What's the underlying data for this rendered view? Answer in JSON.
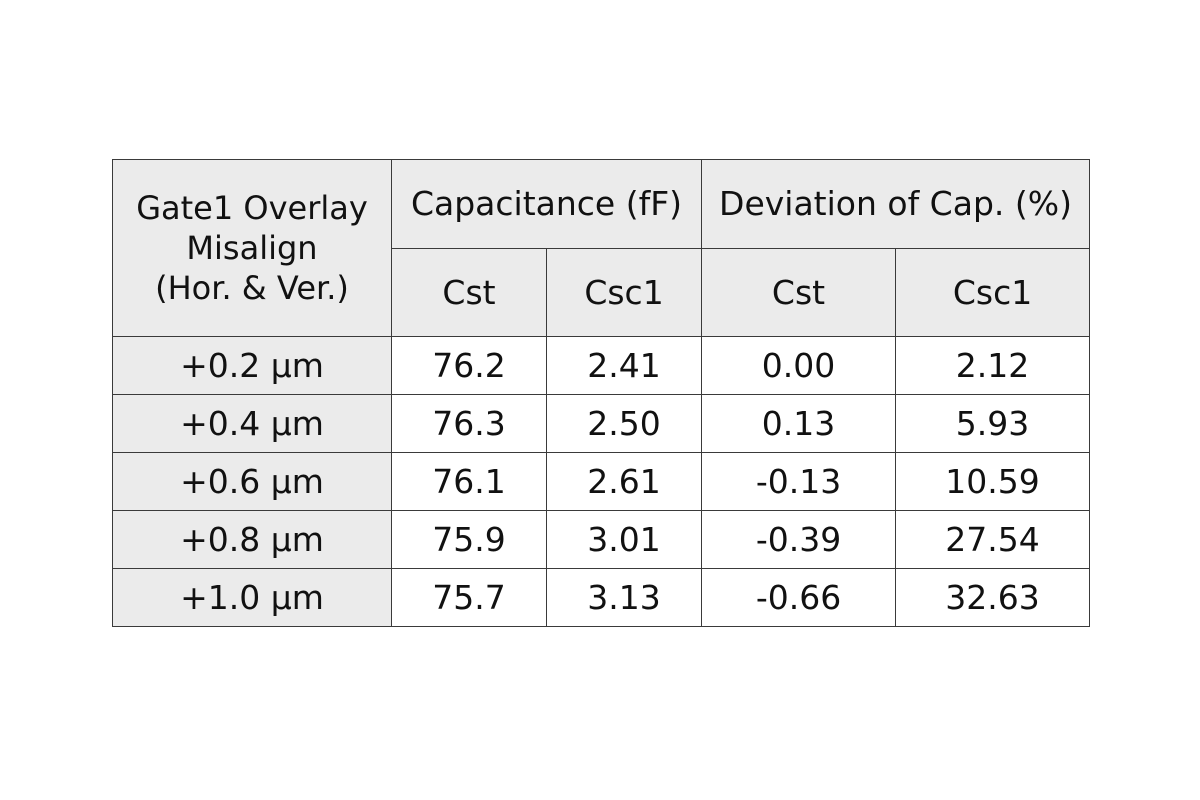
{
  "table": {
    "corner_header_lines": [
      "Gate1 Overlay",
      "Misalign",
      "(Hor. & Ver.)"
    ],
    "group_headers": [
      "Capacitance (fF)",
      "Deviation of Cap. (%)"
    ],
    "sub_headers": [
      "Cst",
      "Csc1",
      "Cst",
      "Csc1"
    ],
    "rows": [
      {
        "label": "+0.2 μm",
        "cap_cst": "76.2",
        "cap_csc1": "2.41",
        "dev_cst": "0.00",
        "dev_csc1": "2.12"
      },
      {
        "label": "+0.4 μm",
        "cap_cst": "76.3",
        "cap_csc1": "2.50",
        "dev_cst": "0.13",
        "dev_csc1": "5.93"
      },
      {
        "label": "+0.6 μm",
        "cap_cst": "76.1",
        "cap_csc1": "2.61",
        "dev_cst": "-0.13",
        "dev_csc1": "10.59"
      },
      {
        "label": "+0.8 μm",
        "cap_cst": "75.9",
        "cap_csc1": "3.01",
        "dev_cst": "-0.39",
        "dev_csc1": "27.54"
      },
      {
        "label": "+1.0 μm",
        "cap_cst": "75.7",
        "cap_csc1": "3.13",
        "dev_cst": "-0.66",
        "dev_csc1": "32.63"
      }
    ],
    "header_background": "#ebebeb",
    "border_color": "#3a3a3a"
  }
}
